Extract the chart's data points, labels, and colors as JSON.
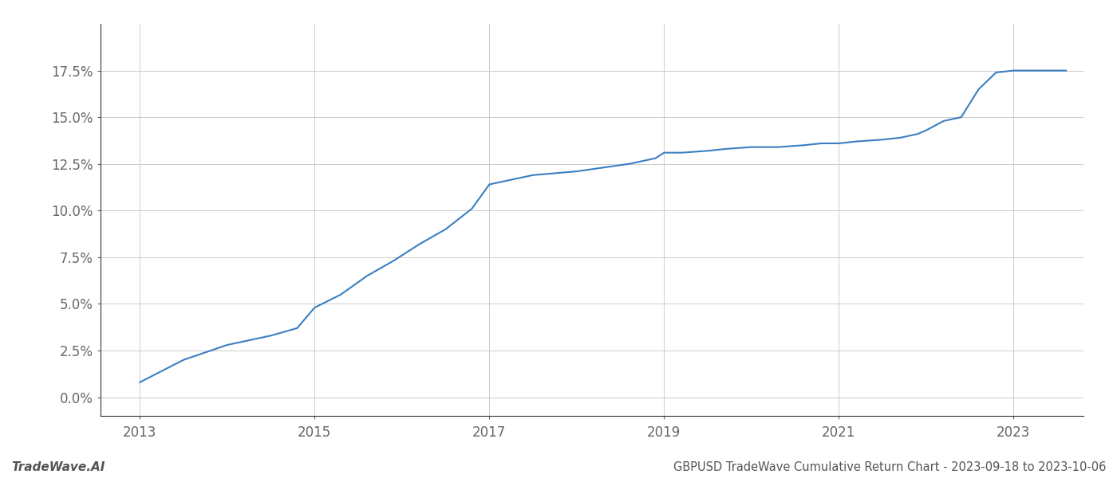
{
  "title": "GBPUSD TradeWave Cumulative Return Chart - 2023-09-18 to 2023-10-06",
  "watermark": "TradeWave.AI",
  "line_color": "#3a7fc1",
  "background_color": "#ffffff",
  "grid_color": "#cccccc",
  "x_values": [
    2013.0,
    2013.5,
    2014.0,
    2014.2,
    2014.5,
    2014.8,
    2015.0,
    2015.3,
    2015.6,
    2015.9,
    2016.2,
    2016.5,
    2016.8,
    2017.0,
    2017.15,
    2017.3,
    2017.5,
    2017.75,
    2018.0,
    2018.3,
    2018.6,
    2018.9,
    2019.0,
    2019.2,
    2019.5,
    2019.7,
    2020.0,
    2020.3,
    2020.6,
    2020.8,
    2021.0,
    2021.2,
    2021.5,
    2021.7,
    2021.9,
    2022.0,
    2022.2,
    2022.4,
    2022.6,
    2022.8,
    2023.0,
    2023.3,
    2023.6
  ],
  "y_values": [
    0.008,
    0.02,
    0.028,
    0.03,
    0.033,
    0.037,
    0.048,
    0.055,
    0.065,
    0.073,
    0.082,
    0.09,
    0.101,
    0.114,
    0.1155,
    0.117,
    0.119,
    0.12,
    0.121,
    0.123,
    0.125,
    0.128,
    0.131,
    0.131,
    0.132,
    0.133,
    0.134,
    0.134,
    0.135,
    0.136,
    0.136,
    0.137,
    0.138,
    0.139,
    0.141,
    0.143,
    0.148,
    0.15,
    0.165,
    0.174,
    0.175,
    0.175,
    0.175
  ],
  "xlim": [
    2012.55,
    2023.8
  ],
  "ylim": [
    -0.01,
    0.2
  ],
  "yticks": [
    0.0,
    0.025,
    0.05,
    0.075,
    0.1,
    0.125,
    0.15,
    0.175
  ],
  "xticks": [
    2013,
    2015,
    2017,
    2019,
    2021,
    2023
  ],
  "line_width": 1.5,
  "title_fontsize": 10.5,
  "tick_fontsize": 12,
  "watermark_fontsize": 11,
  "spine_color": "#333333"
}
